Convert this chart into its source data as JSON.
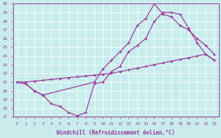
{
  "xlabel": "Windchill (Refroidissement éolien,°C)",
  "xlim_min": -0.5,
  "xlim_max": 23.5,
  "ylim_min": 17,
  "ylim_max": 30,
  "yticks": [
    17,
    18,
    19,
    20,
    21,
    22,
    23,
    24,
    25,
    26,
    27,
    28,
    29,
    30
  ],
  "xticks": [
    0,
    1,
    2,
    3,
    4,
    5,
    6,
    7,
    8,
    9,
    10,
    11,
    12,
    13,
    14,
    15,
    16,
    17,
    18,
    19,
    20,
    21,
    22,
    23
  ],
  "bg_color": "#c8ecec",
  "line_color": "#993399",
  "grid_color": "#ffffff",
  "line1_x": [
    0,
    1,
    2,
    3,
    4,
    5,
    6,
    7,
    8,
    9,
    10,
    11,
    12,
    13,
    14,
    15,
    16,
    17,
    18,
    19,
    20,
    21,
    22,
    23
  ],
  "line1_y": [
    21.0,
    20.8,
    20.0,
    19.5,
    18.5,
    18.2,
    17.5,
    17.1,
    17.5,
    20.8,
    21.0,
    22.2,
    22.8,
    24.5,
    25.2,
    26.0,
    28.0,
    29.0,
    29.0,
    28.8,
    27.2,
    25.5,
    24.2,
    23.5
  ],
  "line2_x": [
    0,
    1,
    2,
    3,
    4,
    5,
    6,
    7,
    8,
    9,
    10,
    11,
    12,
    13,
    14,
    15,
    16,
    17,
    18,
    19,
    20,
    21,
    22,
    23
  ],
  "line2_y": [
    21.0,
    21.0,
    21.1,
    21.2,
    21.3,
    21.4,
    21.5,
    21.6,
    21.7,
    21.8,
    21.9,
    22.0,
    22.2,
    22.4,
    22.6,
    22.8,
    23.0,
    23.2,
    23.4,
    23.6,
    23.8,
    24.0,
    24.2,
    23.5
  ],
  "line3_x": [
    0,
    1,
    2,
    3,
    9,
    10,
    11,
    12,
    13,
    14,
    15,
    16,
    17,
    18,
    19,
    20,
    21,
    22,
    23
  ],
  "line3_y": [
    21.0,
    20.8,
    20.0,
    19.5,
    21.0,
    22.5,
    23.5,
    24.5,
    25.5,
    27.5,
    28.3,
    30.0,
    28.8,
    28.5,
    27.5,
    27.0,
    26.0,
    25.2,
    24.2
  ]
}
